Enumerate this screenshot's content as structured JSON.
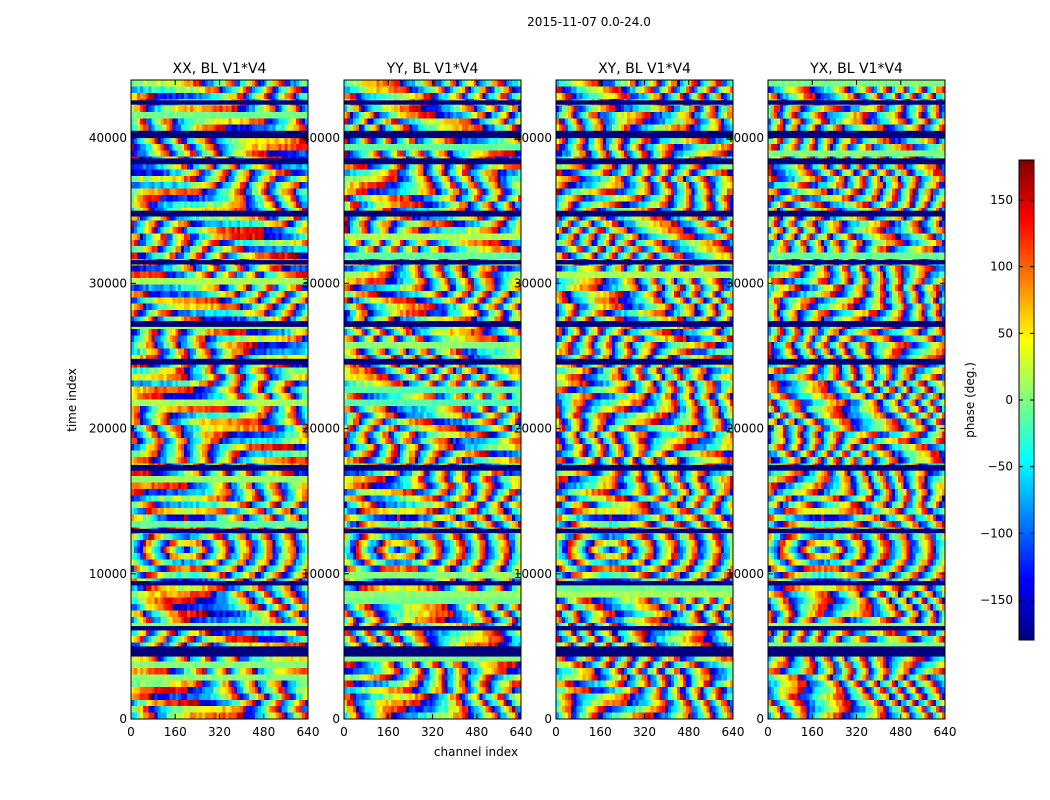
{
  "chart_data": {
    "type": "heatmap",
    "suptitle": "2015-11-07 0.0-24.0",
    "xlabel": "channel index",
    "ylabel": "time index",
    "xlim": [
      0,
      640
    ],
    "ylim": [
      0,
      44000
    ],
    "xticks": [
      "0",
      "160",
      "320",
      "480",
      "640"
    ],
    "yticks": [
      "0",
      "10000",
      "20000",
      "30000",
      "40000"
    ],
    "panels": [
      {
        "title": "XX, BL V1*V4",
        "polarization": "XX"
      },
      {
        "title": "YY, BL V1*V4",
        "polarization": "YY"
      },
      {
        "title": "XY, BL V1*V4",
        "polarization": "XY"
      },
      {
        "title": "YX, BL V1*V4",
        "polarization": "YX"
      }
    ],
    "colorbar": {
      "label": "phase (deg.)",
      "range": [
        -180,
        180
      ],
      "ticks": [
        "−150",
        "−100",
        "−50",
        "0",
        "50",
        "100",
        "150"
      ],
      "colormap": "jet"
    },
    "flagged_time_bands": [
      [
        4300,
        5000
      ],
      [
        6100,
        6400
      ],
      [
        9200,
        9500
      ],
      [
        12800,
        13100
      ],
      [
        17100,
        17500
      ],
      [
        24400,
        24800
      ],
      [
        27000,
        27400
      ],
      [
        31300,
        31600
      ],
      [
        34600,
        35000
      ],
      [
        38200,
        38600
      ],
      [
        40000,
        40500
      ],
      [
        42300,
        42600
      ]
    ]
  }
}
